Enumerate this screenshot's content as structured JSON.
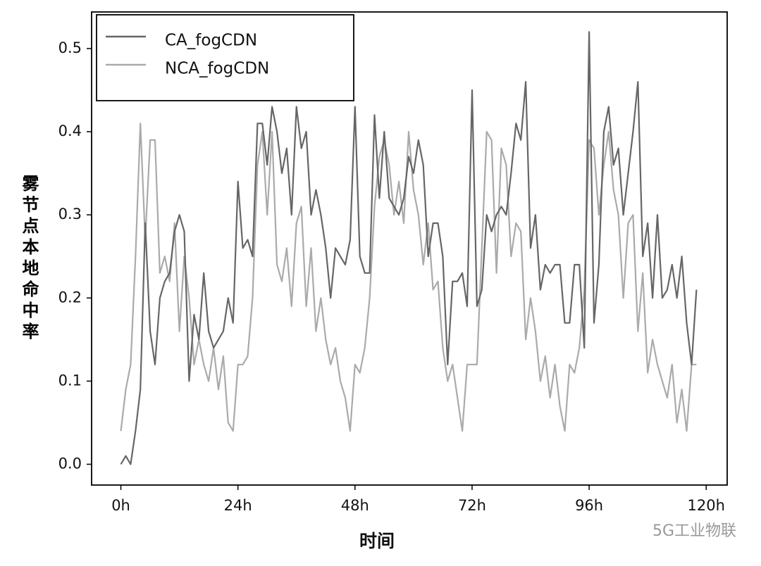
{
  "chart_data": {
    "type": "line",
    "xlabel": "时间",
    "ylabel": "雾节点本地命中率",
    "watermark": "5G工业物联",
    "x": [
      0,
      1,
      2,
      3,
      4,
      5,
      6,
      7,
      8,
      9,
      10,
      11,
      12,
      13,
      14,
      15,
      16,
      17,
      18,
      19,
      20,
      21,
      22,
      23,
      24,
      25,
      26,
      27,
      28,
      29,
      30,
      31,
      32,
      33,
      34,
      35,
      36,
      37,
      38,
      39,
      40,
      41,
      42,
      43,
      44,
      45,
      46,
      47,
      48,
      49,
      50,
      51,
      52,
      53,
      54,
      55,
      56,
      57,
      58,
      59,
      60,
      61,
      62,
      63,
      64,
      65,
      66,
      67,
      68,
      69,
      70,
      71,
      72,
      73,
      74,
      75,
      76,
      77,
      78,
      79,
      80,
      81,
      82,
      83,
      84,
      85,
      86,
      87,
      88,
      89,
      90,
      91,
      92,
      93,
      94,
      95,
      96,
      97,
      98,
      99,
      100,
      101,
      102,
      103,
      104,
      105,
      106,
      107,
      108,
      109,
      110,
      111,
      112,
      113,
      114,
      115,
      116,
      117,
      118
    ],
    "series": [
      {
        "name": "CA_fogCDN",
        "color": "#666666",
        "values": [
          0,
          0.01,
          0,
          0.04,
          0.09,
          0.29,
          0.16,
          0.12,
          0.2,
          0.22,
          0.23,
          0.28,
          0.3,
          0.28,
          0.1,
          0.18,
          0.15,
          0.23,
          0.16,
          0.14,
          0.15,
          0.16,
          0.2,
          0.17,
          0.34,
          0.26,
          0.27,
          0.25,
          0.41,
          0.41,
          0.36,
          0.43,
          0.4,
          0.35,
          0.38,
          0.3,
          0.43,
          0.38,
          0.4,
          0.3,
          0.33,
          0.3,
          0.26,
          0.2,
          0.26,
          0.25,
          0.24,
          0.27,
          0.43,
          0.25,
          0.23,
          0.23,
          0.42,
          0.32,
          0.4,
          0.32,
          0.31,
          0.3,
          0.32,
          0.37,
          0.35,
          0.39,
          0.36,
          0.25,
          0.29,
          0.29,
          0.25,
          0.12,
          0.22,
          0.22,
          0.23,
          0.19,
          0.45,
          0.19,
          0.21,
          0.3,
          0.28,
          0.3,
          0.31,
          0.3,
          0.35,
          0.41,
          0.39,
          0.46,
          0.26,
          0.3,
          0.21,
          0.24,
          0.23,
          0.24,
          0.24,
          0.17,
          0.17,
          0.24,
          0.24,
          0.14,
          0.52,
          0.17,
          0.24,
          0.4,
          0.43,
          0.36,
          0.38,
          0.3,
          0.35,
          0.4,
          0.46,
          0.25,
          0.29,
          0.2,
          0.3,
          0.2,
          0.21,
          0.24,
          0.2,
          0.25,
          0.17,
          0.12,
          0.21
        ]
      },
      {
        "name": "NCA_fogCDN",
        "color": "#aaaaaa",
        "values": [
          0.04,
          0.09,
          0.12,
          0.25,
          0.41,
          0.27,
          0.39,
          0.39,
          0.23,
          0.25,
          0.22,
          0.29,
          0.16,
          0.25,
          0.2,
          0.12,
          0.15,
          0.12,
          0.1,
          0.14,
          0.09,
          0.13,
          0.05,
          0.04,
          0.12,
          0.12,
          0.13,
          0.2,
          0.36,
          0.4,
          0.3,
          0.4,
          0.24,
          0.22,
          0.26,
          0.19,
          0.29,
          0.31,
          0.19,
          0.26,
          0.16,
          0.2,
          0.15,
          0.12,
          0.14,
          0.1,
          0.08,
          0.04,
          0.12,
          0.11,
          0.14,
          0.2,
          0.31,
          0.37,
          0.39,
          0.36,
          0.3,
          0.34,
          0.29,
          0.4,
          0.33,
          0.3,
          0.24,
          0.29,
          0.21,
          0.22,
          0.14,
          0.1,
          0.12,
          0.08,
          0.04,
          0.12,
          0.12,
          0.12,
          0.26,
          0.4,
          0.39,
          0.23,
          0.38,
          0.36,
          0.25,
          0.29,
          0.28,
          0.15,
          0.2,
          0.16,
          0.1,
          0.13,
          0.08,
          0.12,
          0.07,
          0.04,
          0.12,
          0.11,
          0.14,
          0.21,
          0.39,
          0.38,
          0.3,
          0.36,
          0.4,
          0.33,
          0.3,
          0.2,
          0.29,
          0.3,
          0.16,
          0.23,
          0.11,
          0.15,
          0.12,
          0.1,
          0.08,
          0.12,
          0.05,
          0.09,
          0.04,
          0.12,
          0.12
        ]
      }
    ],
    "xlim": [
      -6,
      124.3
    ],
    "ylim": [
      -0.025,
      0.544
    ],
    "xticks": [
      {
        "value": 0,
        "label": "0h"
      },
      {
        "value": 24,
        "label": "24h"
      },
      {
        "value": 48,
        "label": "48h"
      },
      {
        "value": 72,
        "label": "72h"
      },
      {
        "value": 96,
        "label": "96h"
      },
      {
        "value": 120,
        "label": "120h"
      }
    ],
    "yticks": [
      {
        "value": 0,
        "label": "0.0"
      },
      0.1,
      0.2,
      0.3,
      0.4,
      0.5
    ],
    "grid": false,
    "legend": "upper left"
  }
}
